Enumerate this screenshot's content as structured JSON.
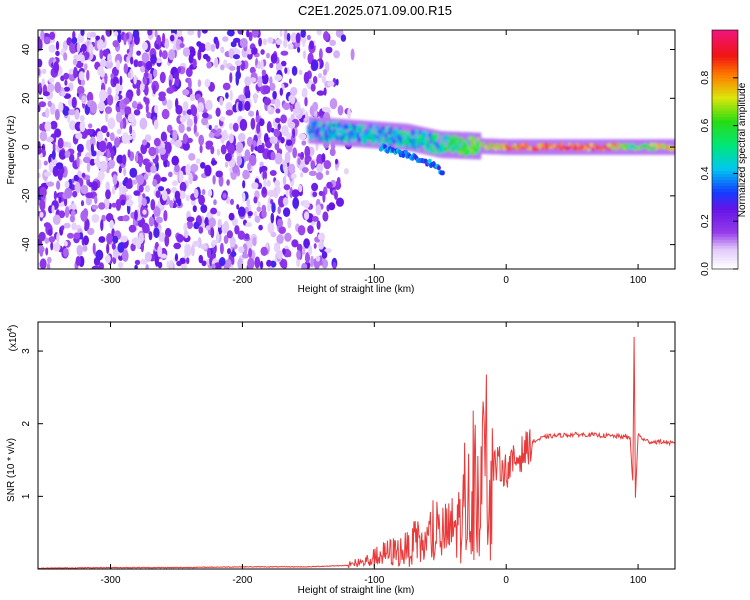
{
  "title": "C2E1.2025.071.09.00.R15",
  "chart_data": [
    {
      "type": "heatmap",
      "xlabel": "Height of straight line (km)",
      "ylabel": "Frequency (Hz)",
      "xlim": [
        -355,
        128
      ],
      "ylim": [
        -50,
        48
      ],
      "x_ticks": [
        -300,
        -200,
        -100,
        0,
        100
      ],
      "y_ticks": [
        -40,
        -20,
        0,
        20,
        40
      ],
      "colorbar": {
        "label": "Normalized spectral amplitude",
        "range": [
          0,
          1
        ],
        "ticks": [
          0.0,
          0.2,
          0.4,
          0.6,
          0.8
        ],
        "tick_labels": [
          "0.0",
          "0.2",
          "0.4",
          "0.6",
          "0.8"
        ]
      },
      "features": {
        "noise_region_x": [
          -355,
          -140
        ],
        "echo_trace": [
          {
            "x": -150,
            "f": 7,
            "amp": 0.35
          },
          {
            "x": -125,
            "f": 6,
            "amp": 0.42
          },
          {
            "x": -100,
            "f": 5,
            "amp": 0.4
          },
          {
            "x": -75,
            "f": 4,
            "amp": 0.45
          },
          {
            "x": -50,
            "f": 1,
            "amp": 0.48
          },
          {
            "x": -25,
            "f": 0.5,
            "amp": 0.6
          },
          {
            "x": 0,
            "f": 0,
            "amp": 0.8
          },
          {
            "x": 25,
            "f": 0,
            "amp": 0.85
          },
          {
            "x": 50,
            "f": 0,
            "amp": 0.85
          },
          {
            "x": 75,
            "f": 0,
            "amp": 0.85
          },
          {
            "x": 95,
            "f": 0,
            "amp": 0.55
          },
          {
            "x": 128,
            "f": 0,
            "amp": 0.8
          }
        ],
        "branch_trace": [
          {
            "x": -95,
            "f": 0
          },
          {
            "x": -75,
            "f": -3
          },
          {
            "x": -60,
            "f": -6
          },
          {
            "x": -48,
            "f": -10
          }
        ]
      }
    },
    {
      "type": "line",
      "xlabel": "Height of straight line (km)",
      "ylabel": "SNR (10 * v/v)",
      "y_scale_label": "(x10",
      "y_scale_exp": "4",
      "y_scale_close": ")",
      "y_multiplier": 10000,
      "xlim": [
        -355,
        128
      ],
      "ylim": [
        0,
        3.4
      ],
      "x_ticks": [
        -300,
        -200,
        -100,
        0,
        100
      ],
      "y_ticks": [
        1,
        2,
        3
      ],
      "color": "#e83a3a",
      "series": [
        {
          "x": [
            -355,
            -300,
            -250,
            -200,
            -150,
            -120,
            -110,
            -100,
            -90,
            -80,
            -70,
            -60,
            -50,
            -45,
            -40,
            -35,
            -30,
            -25,
            -20,
            -15,
            -12,
            -10,
            -5,
            0,
            5,
            10,
            15,
            20,
            30,
            40,
            50,
            60,
            70,
            80,
            90,
            94,
            96,
            97,
            98,
            100,
            105,
            110,
            120,
            128
          ],
          "y": [
            0.01,
            0.02,
            0.02,
            0.03,
            0.03,
            0.05,
            0.08,
            0.15,
            0.22,
            0.25,
            0.3,
            0.35,
            0.45,
            0.5,
            0.55,
            0.65,
            0.85,
            1.0,
            1.2,
            1.3,
            1.1,
            1.4,
            1.45,
            1.35,
            1.45,
            1.55,
            1.65,
            1.75,
            1.82,
            1.84,
            1.85,
            1.85,
            1.84,
            1.83,
            1.82,
            1.8,
            1.2,
            3.2,
            1.0,
            1.85,
            1.77,
            1.75,
            1.75,
            1.72
          ]
        }
      ]
    }
  ]
}
